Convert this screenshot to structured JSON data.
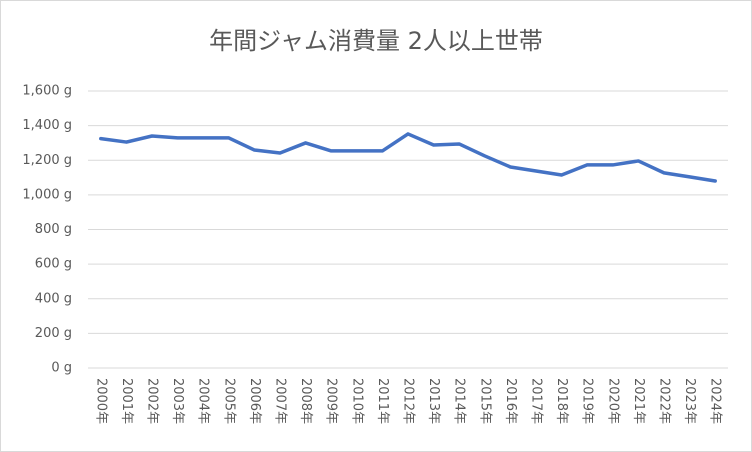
{
  "chart_data": {
    "type": "line",
    "title": "年間ジャム消費量 2人以上世帯",
    "categories": [
      "2000年",
      "2001年",
      "2002年",
      "2003年",
      "2004年",
      "2005年",
      "2006年",
      "2007年",
      "2008年",
      "2009年",
      "2010年",
      "2011年",
      "2012年",
      "2013年",
      "2014年",
      "2015年",
      "2016年",
      "2017年",
      "2018年",
      "2019年",
      "2020年",
      "2021年",
      "2022年",
      "2023年",
      "2024年"
    ],
    "series": [
      {
        "color": "#4472c4",
        "values": [
          1325,
          1305,
          1340,
          1329,
          1329,
          1329,
          1259,
          1242,
          1300,
          1254,
          1254,
          1254,
          1352,
          1288,
          1294,
          1225,
          1161,
          1138,
          1115,
          1173,
          1173,
          1196,
          1127,
          1104,
          1080
        ]
      }
    ],
    "ylim": [
      0,
      1600
    ],
    "yticks": [
      {
        "value": 0,
        "label": "0 g"
      },
      {
        "value": 200,
        "label": "200 g"
      },
      {
        "value": 400,
        "label": "400 g"
      },
      {
        "value": 600,
        "label": "600 g"
      },
      {
        "value": 800,
        "label": "800 g"
      },
      {
        "value": 1000,
        "label": "1,000 g"
      },
      {
        "value": 1200,
        "label": "1,200 g"
      },
      {
        "value": 1400,
        "label": "1,400 g"
      },
      {
        "value": 1600,
        "label": "1,600 g"
      }
    ],
    "grid": true
  }
}
